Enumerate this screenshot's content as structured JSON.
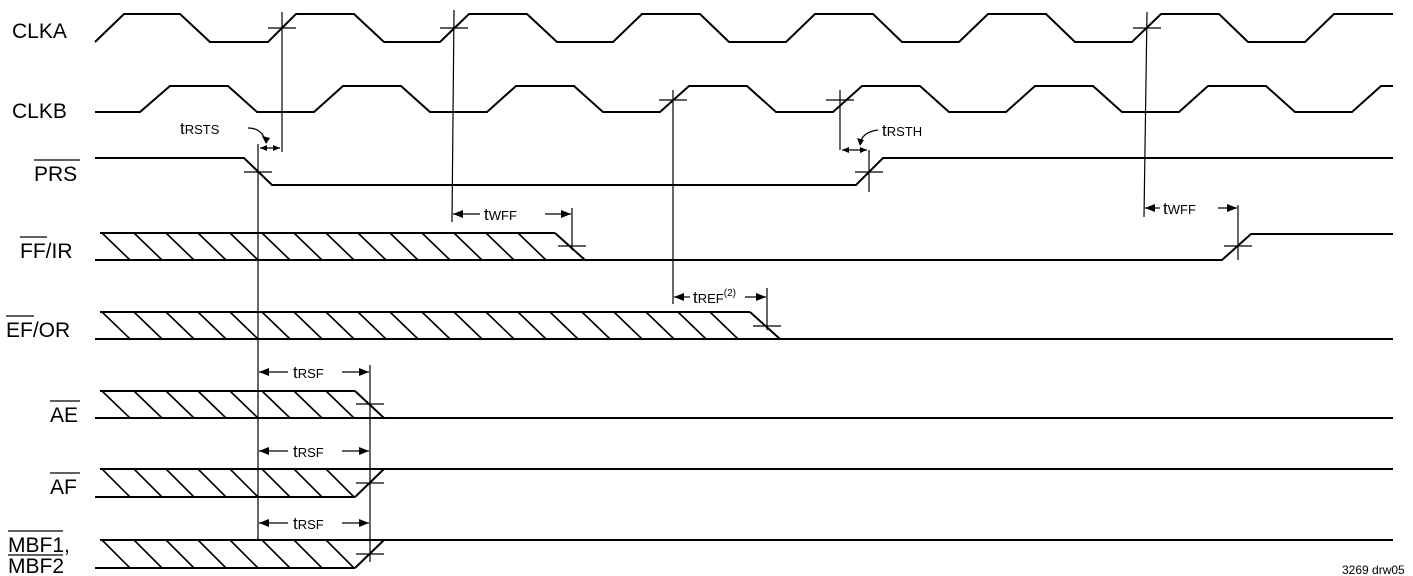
{
  "signals": [
    {
      "id": "clka",
      "text": "CLKA",
      "overline": "",
      "rest": "",
      "line2": ""
    },
    {
      "id": "clkb",
      "text": "CLKB",
      "overline": "",
      "rest": "",
      "line2": ""
    },
    {
      "id": "prs",
      "text": "",
      "overline": "PRS",
      "rest": "",
      "line2": ""
    },
    {
      "id": "ffir",
      "text": "",
      "overline": "FF",
      "rest": "/IR",
      "line2": ""
    },
    {
      "id": "efor",
      "text": "",
      "overline": "EF",
      "rest": "/OR",
      "line2": ""
    },
    {
      "id": "ae",
      "text": "",
      "overline": "AE",
      "rest": "",
      "line2": ""
    },
    {
      "id": "af",
      "text": "",
      "overline": "AF",
      "rest": "",
      "line2": ""
    },
    {
      "id": "mbf",
      "text": "",
      "overline": "MBF1",
      "rest": ",",
      "line2": "MBF2"
    }
  ],
  "timings": {
    "rsts": {
      "t": "t",
      "sub": "RSTS",
      "sup": ""
    },
    "rsth": {
      "t": "t",
      "sub": "RSTH",
      "sup": ""
    },
    "wff1": {
      "t": "t",
      "sub": "WFF",
      "sup": ""
    },
    "wff2": {
      "t": "t",
      "sub": "WFF",
      "sup": ""
    },
    "ref": {
      "t": "t",
      "sub": "REF",
      "sup": "(2)"
    },
    "rsf1": {
      "t": "t",
      "sub": "RSF",
      "sup": ""
    },
    "rsf2": {
      "t": "t",
      "sub": "RSF",
      "sup": ""
    },
    "rsf3": {
      "t": "t",
      "sub": "RSF",
      "sup": ""
    }
  },
  "figure_id": "3269 drw05"
}
